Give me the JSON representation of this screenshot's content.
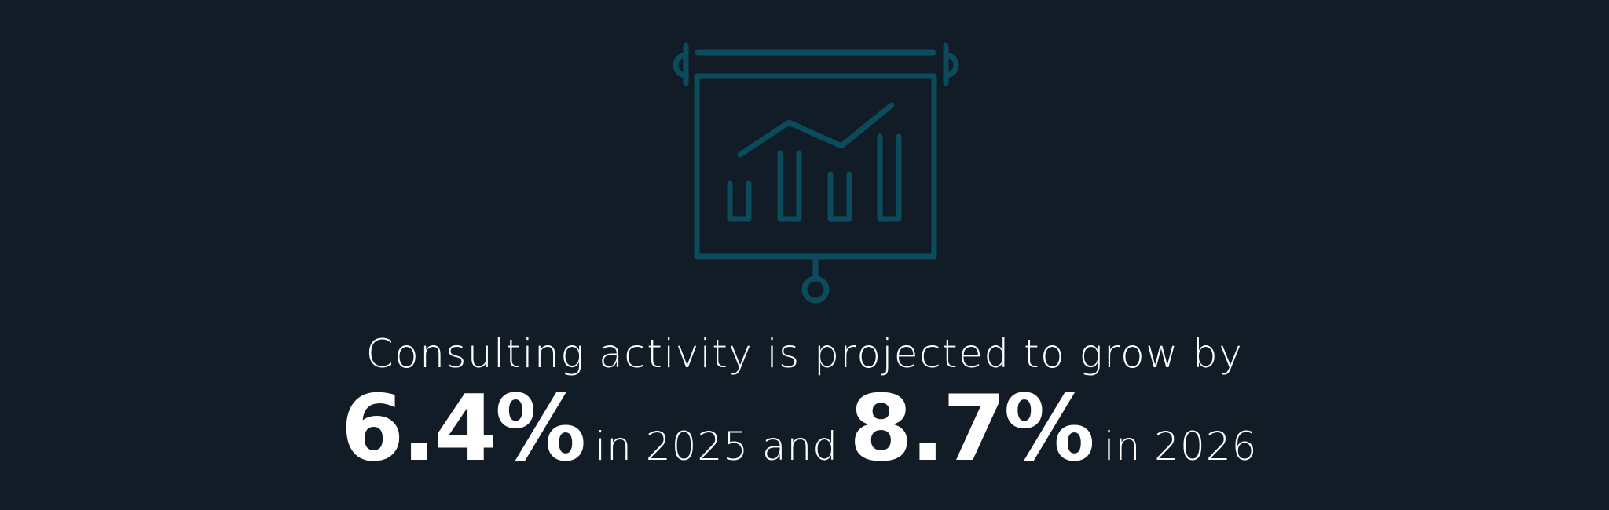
{
  "icon": {
    "name": "presentation-chart-icon",
    "color": "#0c4b5c"
  },
  "colors": {
    "background": "#121c27",
    "text": "#ffffff"
  },
  "headline": "Consulting activity is projected to grow by",
  "stat1": {
    "value": "6.4%",
    "suffix": "in 2025 and"
  },
  "stat2": {
    "value": "8.7%",
    "suffix": "in 2026"
  }
}
